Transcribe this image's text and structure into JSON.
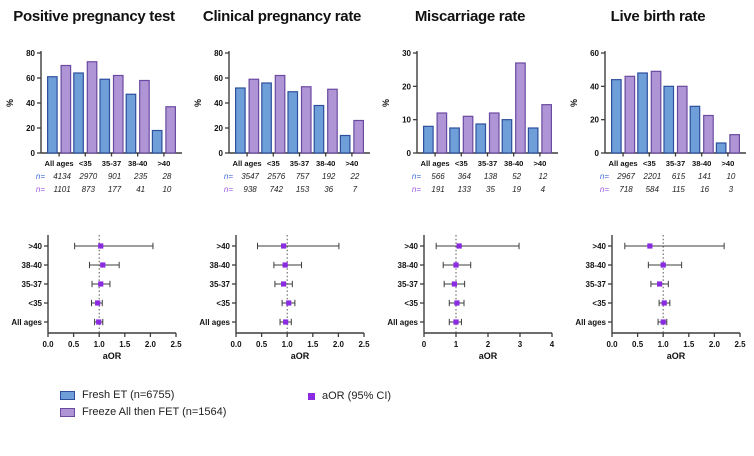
{
  "colors": {
    "fresh_fill": "#6f9fd8",
    "fresh_stroke": "#2d4f9e",
    "fet_fill": "#b095d6",
    "fet_stroke": "#6a4aa0",
    "aor_marker": "#8a2be2",
    "axis": "#3d3d3d",
    "errorbar": "#3d3d3d",
    "refline": "#555555",
    "n_fresh": "#4169d8",
    "n_fet": "#a158e0",
    "text": "#111111"
  },
  "legend": {
    "items": [
      {
        "label": "Fresh ET (n=6755)",
        "series_key": "fresh"
      },
      {
        "label": "Freeze All then FET (n=1564)",
        "series_key": "fet"
      },
      {
        "label": "aOR (95% CI)",
        "series_key": "aor"
      }
    ]
  },
  "chart_data": [
    {
      "type": "bar",
      "title": "Positive pregnancy test",
      "ylabel": "%",
      "ylim": [
        0,
        80
      ],
      "ytick_values": [
        0,
        20,
        40,
        60,
        80
      ],
      "ytick_labels": [
        "0",
        "20",
        "40",
        "60",
        "80"
      ],
      "categories": [
        "All ages",
        "<35",
        "35-37",
        "38-40",
        ">40"
      ],
      "series": [
        {
          "name": "Fresh ET",
          "color_key": "fresh",
          "values": [
            61,
            64,
            59,
            47,
            18
          ]
        },
        {
          "name": "Freeze All then FET",
          "color_key": "fet",
          "values": [
            70,
            73,
            62,
            58,
            37
          ]
        }
      ],
      "n_rows": [
        {
          "prefix": "n=",
          "color_key": "fresh",
          "values": [
            "4134",
            "2970",
            "901",
            "235",
            "28"
          ]
        },
        {
          "prefix": "n=",
          "color_key": "fet",
          "values": [
            "1101",
            "873",
            "177",
            "41",
            "10"
          ]
        }
      ]
    },
    {
      "type": "bar",
      "title": "Clinical pregnancy rate",
      "ylabel": "%",
      "ylim": [
        0,
        80
      ],
      "ytick_values": [
        0,
        20,
        40,
        60,
        80
      ],
      "ytick_labels": [
        "0",
        "20",
        "40",
        "60",
        "80"
      ],
      "categories": [
        "All ages",
        "<35",
        "35-37",
        "38-40",
        ">40"
      ],
      "series": [
        {
          "name": "Fresh ET",
          "color_key": "fresh",
          "values": [
            52,
            56,
            49,
            38,
            14
          ]
        },
        {
          "name": "Freeze All then FET",
          "color_key": "fet",
          "values": [
            59,
            62,
            53,
            51,
            26
          ]
        }
      ],
      "n_rows": [
        {
          "prefix": "n=",
          "color_key": "fresh",
          "values": [
            "3547",
            "2576",
            "757",
            "192",
            "22"
          ]
        },
        {
          "prefix": "n=",
          "color_key": "fet",
          "values": [
            "938",
            "742",
            "153",
            "36",
            "7"
          ]
        }
      ]
    },
    {
      "type": "bar",
      "title": "Miscarriage rate",
      "ylabel": "%",
      "ylim": [
        0,
        30
      ],
      "ytick_values": [
        0,
        10,
        20,
        30
      ],
      "ytick_labels": [
        "0",
        "10",
        "20",
        "30"
      ],
      "categories": [
        "All ages",
        "<35",
        "35-37",
        "38-40",
        ">40"
      ],
      "series": [
        {
          "name": "Fresh ET",
          "color_key": "fresh",
          "values": [
            8,
            7.5,
            8.7,
            10,
            7.5
          ]
        },
        {
          "name": "Freeze All then FET",
          "color_key": "fet",
          "values": [
            12,
            11,
            12,
            27,
            14.5
          ]
        }
      ],
      "n_rows": [
        {
          "prefix": "n=",
          "color_key": "fresh",
          "values": [
            "566",
            "364",
            "138",
            "52",
            "12"
          ]
        },
        {
          "prefix": "n=",
          "color_key": "fet",
          "values": [
            "191",
            "133",
            "35",
            "19",
            "4"
          ]
        }
      ]
    },
    {
      "type": "bar",
      "title": "Live birth rate",
      "ylabel": "%",
      "ylim": [
        0,
        60
      ],
      "ytick_values": [
        0,
        20,
        40,
        60
      ],
      "ytick_labels": [
        "0",
        "20",
        "40",
        "60"
      ],
      "categories": [
        "All ages",
        "<35",
        "35-37",
        "38-40",
        ">40"
      ],
      "series": [
        {
          "name": "Fresh ET",
          "color_key": "fresh",
          "values": [
            44,
            48,
            40,
            28,
            6
          ]
        },
        {
          "name": "Freeze All then FET",
          "color_key": "fet",
          "values": [
            46,
            49,
            40,
            22.5,
            11
          ]
        }
      ],
      "n_rows": [
        {
          "prefix": "n=",
          "color_key": "fresh",
          "values": [
            "2967",
            "2201",
            "615",
            "141",
            "10"
          ]
        },
        {
          "prefix": "n=",
          "color_key": "fet",
          "values": [
            "718",
            "584",
            "115",
            "16",
            "3"
          ]
        }
      ]
    },
    {
      "type": "scatter",
      "subtype": "forest",
      "xlabel": "aOR",
      "xlim": [
        0,
        2.5
      ],
      "xtick_values": [
        0,
        0.5,
        1,
        1.5,
        2,
        2.5
      ],
      "xtick_labels": [
        "0.0",
        "0.5",
        "1.0",
        "1.5",
        "2.0",
        "2.5"
      ],
      "refline": 1,
      "categories": [
        ">40",
        "38-40",
        "35-37",
        "<35",
        "All ages"
      ],
      "series": [
        {
          "name": "aOR (95% CI)",
          "color_key": "aor",
          "points": [
            {
              "x": 1.03,
              "lo": 0.52,
              "hi": 2.05
            },
            {
              "x": 1.07,
              "lo": 0.81,
              "hi": 1.39
            },
            {
              "x": 1.03,
              "lo": 0.86,
              "hi": 1.21
            },
            {
              "x": 0.97,
              "lo": 0.85,
              "hi": 1.06
            },
            {
              "x": 0.99,
              "lo": 0.91,
              "hi": 1.07
            }
          ]
        }
      ]
    },
    {
      "type": "scatter",
      "subtype": "forest",
      "xlabel": "aOR",
      "xlim": [
        0,
        2.5
      ],
      "xtick_values": [
        0,
        0.5,
        1,
        1.5,
        2,
        2.5
      ],
      "xtick_labels": [
        "0.0",
        "0.5",
        "1.0",
        "1.5",
        "2.0",
        "2.5"
      ],
      "refline": 1,
      "categories": [
        ">40",
        "38-40",
        "35-37",
        "<35",
        "All ages"
      ],
      "series": [
        {
          "name": "aOR (95% CI)",
          "color_key": "aor",
          "points": [
            {
              "x": 0.93,
              "lo": 0.42,
              "hi": 2.01
            },
            {
              "x": 0.96,
              "lo": 0.74,
              "hi": 1.28
            },
            {
              "x": 0.93,
              "lo": 0.76,
              "hi": 1.1
            },
            {
              "x": 1.03,
              "lo": 0.9,
              "hi": 1.15
            },
            {
              "x": 0.97,
              "lo": 0.86,
              "hi": 1.08
            }
          ]
        }
      ]
    },
    {
      "type": "scatter",
      "subtype": "forest",
      "xlabel": "aOR",
      "xlim": [
        0,
        4
      ],
      "xtick_values": [
        0,
        1,
        2,
        3,
        4
      ],
      "xtick_labels": [
        "0",
        "1",
        "2",
        "3",
        "4"
      ],
      "refline": 1,
      "categories": [
        ">40",
        "38-40",
        "35-37",
        "<35",
        "All ages"
      ],
      "series": [
        {
          "name": "aOR (95% CI)",
          "color_key": "aor",
          "points": [
            {
              "x": 1.1,
              "lo": 0.38,
              "hi": 2.97
            },
            {
              "x": 1.0,
              "lo": 0.6,
              "hi": 1.46
            },
            {
              "x": 0.95,
              "lo": 0.63,
              "hi": 1.27
            },
            {
              "x": 1.03,
              "lo": 0.79,
              "hi": 1.25
            },
            {
              "x": 1.0,
              "lo": 0.79,
              "hi": 1.17
            }
          ]
        }
      ]
    },
    {
      "type": "scatter",
      "subtype": "forest",
      "xlabel": "aOR",
      "xlim": [
        0,
        2.5
      ],
      "xtick_values": [
        0,
        0.5,
        1,
        1.5,
        2,
        2.5
      ],
      "xtick_labels": [
        "0.0",
        "0.5",
        "1.0",
        "1.5",
        "2.0",
        "2.5"
      ],
      "refline": 1,
      "categories": [
        ">40",
        "38-40",
        "35-37",
        "<35",
        "All ages"
      ],
      "series": [
        {
          "name": "aOR (95% CI)",
          "color_key": "aor",
          "points": [
            {
              "x": 0.74,
              "lo": 0.25,
              "hi": 2.19
            },
            {
              "x": 1.0,
              "lo": 0.71,
              "hi": 1.36
            },
            {
              "x": 0.93,
              "lo": 0.76,
              "hi": 1.1
            },
            {
              "x": 1.02,
              "lo": 0.92,
              "hi": 1.13
            },
            {
              "x": 1.0,
              "lo": 0.9,
              "hi": 1.07
            }
          ]
        }
      ]
    }
  ]
}
